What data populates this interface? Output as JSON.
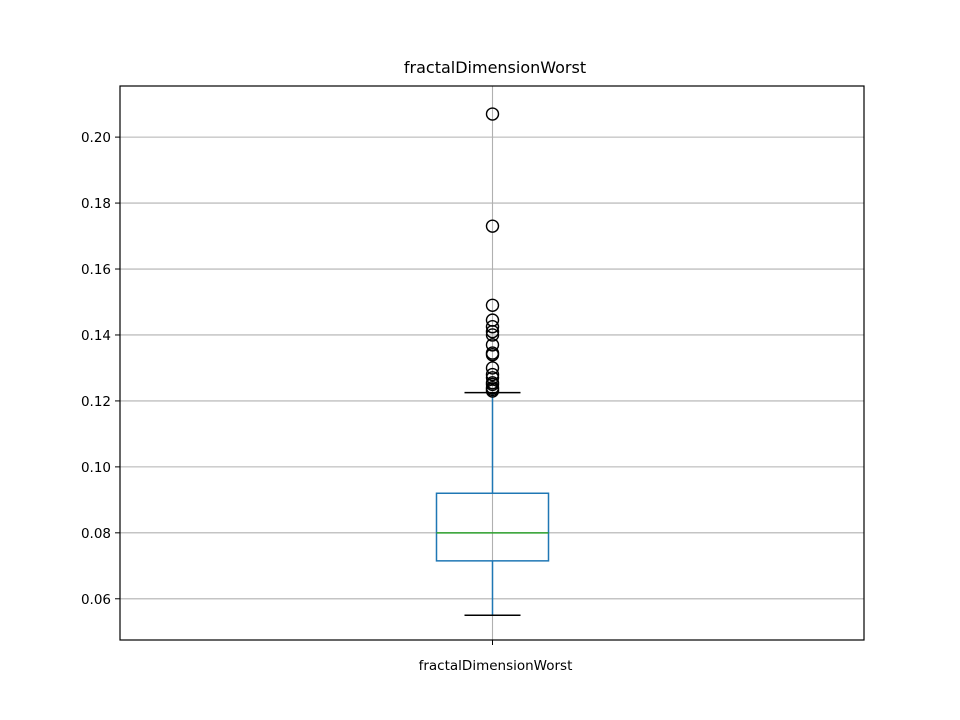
{
  "chart_data": {
    "type": "boxplot",
    "title": "fractalDimensionWorst",
    "xlabel": "",
    "ylabel": "",
    "categories": [
      "fractalDimensionWorst"
    ],
    "ylim": [
      0.0475,
      0.2155
    ],
    "yticks": [
      0.06,
      0.08,
      0.1,
      0.12,
      0.14,
      0.16,
      0.18,
      0.2
    ],
    "ytick_labels": [
      "0.06",
      "0.08",
      "0.10",
      "0.12",
      "0.14",
      "0.16",
      "0.18",
      "0.20"
    ],
    "grid": true,
    "boxes": [
      {
        "name": "fractalDimensionWorst",
        "whisker_low": 0.055,
        "q1": 0.0715,
        "median": 0.08,
        "q3": 0.092,
        "whisker_high": 0.1225,
        "outliers": [
          0.207,
          0.173,
          0.149,
          0.1445,
          0.1425,
          0.141,
          0.14,
          0.137,
          0.1345,
          0.134,
          0.13,
          0.128,
          0.127,
          0.1255,
          0.125,
          0.124,
          0.1235,
          0.123
        ]
      }
    ],
    "colors": {
      "box": "#1f77b4",
      "median": "#2ca02c",
      "caps": "#000000",
      "outlier_edge": "#000000",
      "grid": "#b0b0b0"
    }
  }
}
